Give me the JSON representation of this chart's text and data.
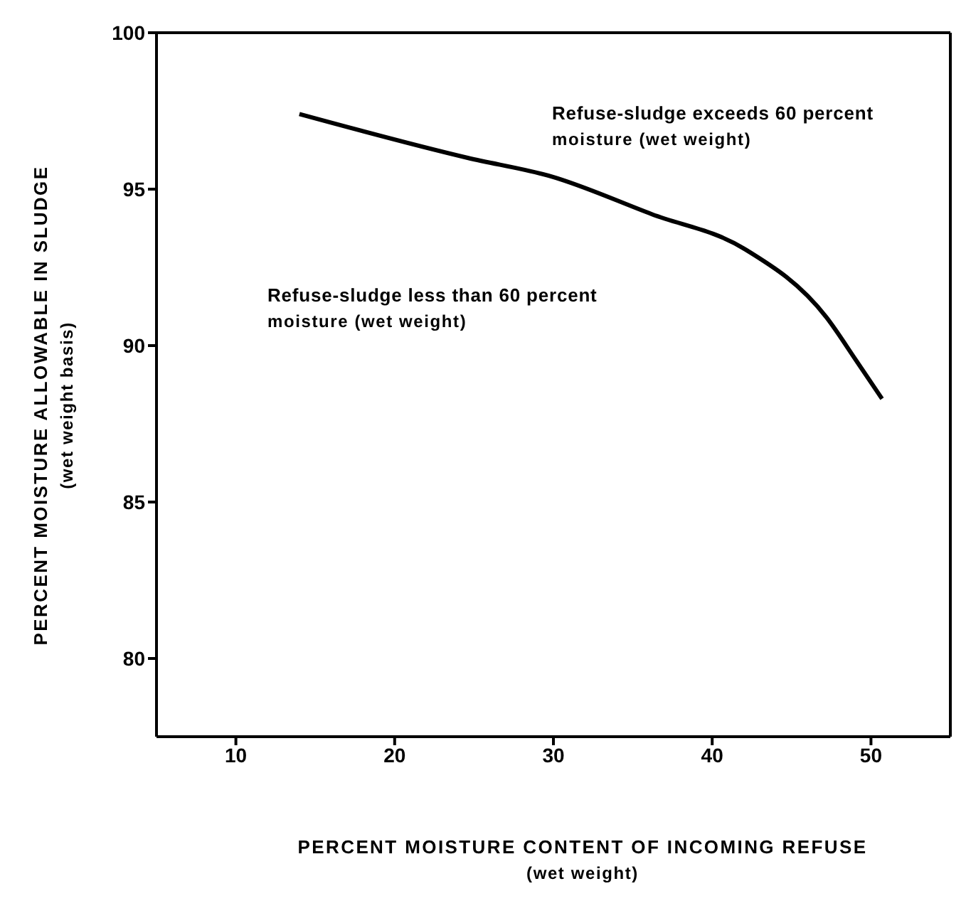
{
  "chart_data": {
    "type": "line",
    "xlabel": "PERCENT MOISTURE CONTENT OF INCOMING REFUSE\n(wet weight)",
    "ylabel": "PERCENT MOISTURE ALLOWABLE IN SLUDGE\n(wet weight basis)",
    "annotations": [
      "Refuse-sludge exceeds 60 percent\nmoisture (wet weight)",
      "Refuse-sludge less than 60 percent\nmoisture (wet weight)"
    ],
    "series": [
      {
        "color": "#000000",
        "x": [
          14.0,
          24.6,
          29.9,
          36.2,
          42.0,
          47.2,
          49.1,
          50.7
        ],
        "values": [
          97.4,
          96.0,
          95.4,
          94.2,
          93.1,
          90.9,
          89.5,
          88.3
        ]
      }
    ],
    "xlim": [
      5,
      55
    ],
    "xticks": [
      10,
      20,
      30,
      40,
      50
    ],
    "ylim": [
      77.5,
      100
    ],
    "yticks": [
      80,
      85,
      90,
      95,
      100
    ],
    "legend": false,
    "marker": "none",
    "line_style": "solid"
  }
}
